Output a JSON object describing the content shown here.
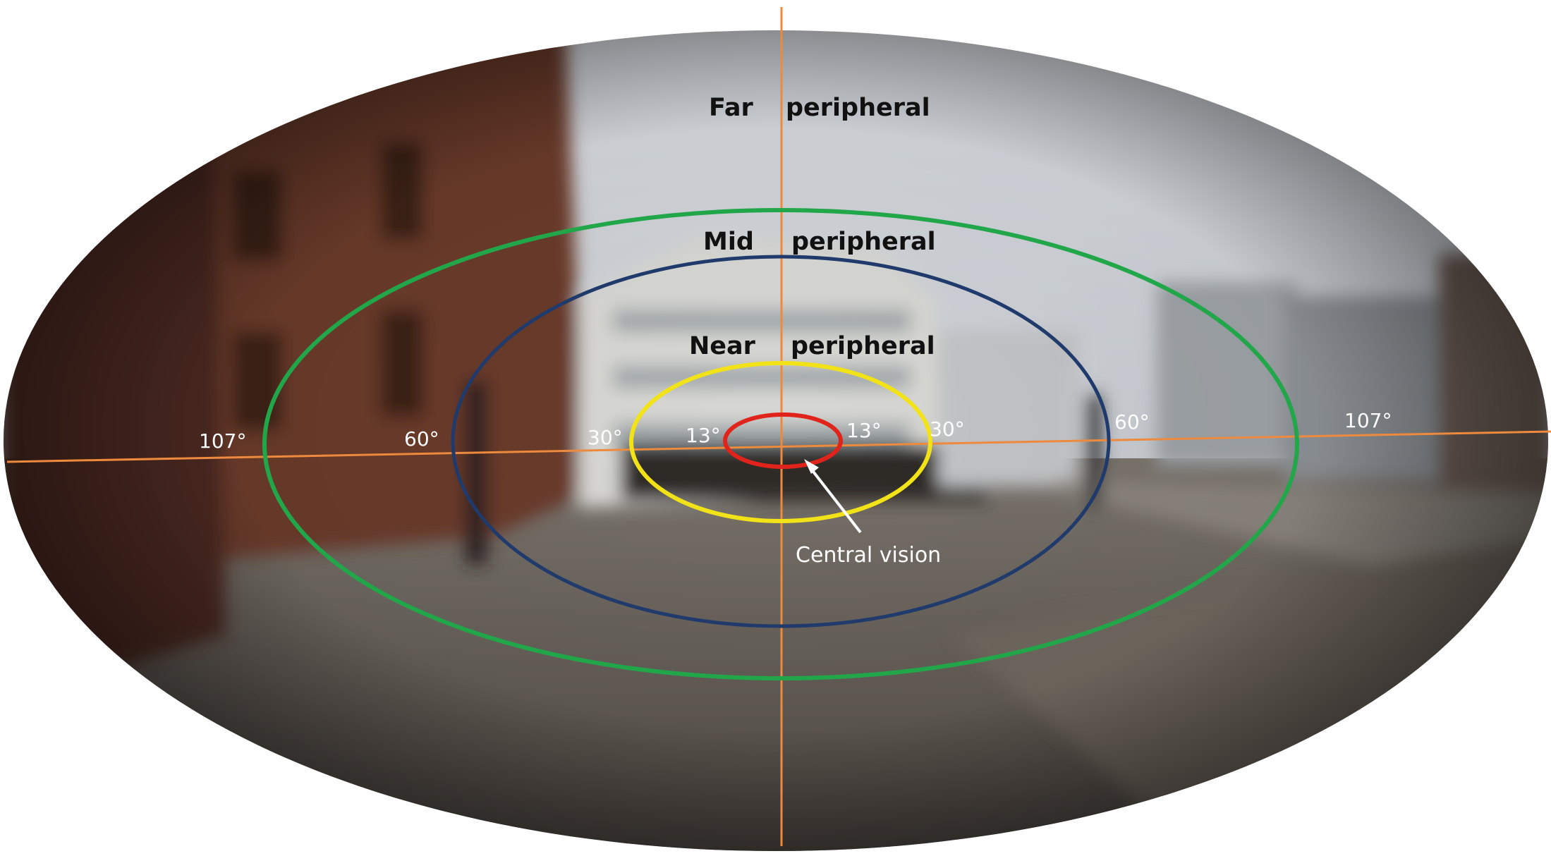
{
  "zone_labels": {
    "far": {
      "left": "Far",
      "right": "peripheral"
    },
    "mid": {
      "left": "Mid",
      "right": "peripheral"
    },
    "near": {
      "left": "Near",
      "right": "peripheral"
    }
  },
  "angle_labels": {
    "deg107_left": "107°",
    "deg60_left": "60°",
    "deg30_left": "30°",
    "deg13_left": "13°",
    "deg13_right": "13°",
    "deg30_right": "30°",
    "deg60_right": "60°",
    "deg107_right": "107°"
  },
  "central_label": "Central vision",
  "colors": {
    "far_ring": "#22a64a",
    "mid_ring": "#1f3a6b",
    "near_ring": "#f2e318",
    "central_ring": "#e0231b",
    "axes": "#ee8a3d",
    "pointer": "#ffffff"
  }
}
